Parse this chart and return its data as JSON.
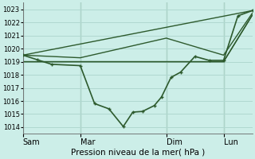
{
  "xlabel": "Pression niveau de la mer( hPa )",
  "bg_color": "#cceee8",
  "grid_color": "#b0d8d0",
  "line_color": "#2d5a2d",
  "ylim": [
    1013.5,
    1023.5
  ],
  "yticks": [
    1014,
    1015,
    1016,
    1017,
    1018,
    1019,
    1020,
    1021,
    1022,
    1023
  ],
  "xlim": [
    0,
    96
  ],
  "day_ticks": [
    0,
    24,
    60,
    84
  ],
  "day_labels": [
    "Sam",
    "Mar",
    "Dim",
    "Lun"
  ],
  "vline_positions": [
    0,
    24,
    60,
    84
  ],
  "line_main": {
    "x": [
      0,
      6,
      12,
      24,
      30,
      36,
      42,
      46,
      50,
      55,
      58,
      62,
      66,
      72,
      78,
      84,
      90,
      96
    ],
    "y": [
      1019.5,
      1019.15,
      1018.8,
      1018.7,
      1015.8,
      1015.4,
      1014.05,
      1015.15,
      1015.2,
      1015.65,
      1016.3,
      1017.8,
      1018.2,
      1019.4,
      1019.1,
      1019.1,
      1022.5,
      1022.9
    ],
    "lw": 1.2,
    "ms": 2.5,
    "marker": "+"
  },
  "line_flat1": {
    "x": [
      0,
      24,
      60,
      84,
      96
    ],
    "y": [
      1019.0,
      1019.0,
      1019.0,
      1019.0,
      1022.55
    ],
    "lw": 1.0
  },
  "line_flat2": {
    "x": [
      0,
      24,
      60,
      84,
      96
    ],
    "y": [
      1019.0,
      1019.0,
      1019.0,
      1019.0,
      1022.55
    ],
    "lw": 1.0
  },
  "line_diagonal": {
    "x": [
      0,
      96
    ],
    "y": [
      1019.5,
      1022.9
    ],
    "lw": 1.0
  },
  "line_curve": {
    "x": [
      0,
      24,
      60,
      84,
      96
    ],
    "y": [
      1019.5,
      1019.3,
      1020.8,
      1019.5,
      1022.7
    ],
    "lw": 1.0
  }
}
